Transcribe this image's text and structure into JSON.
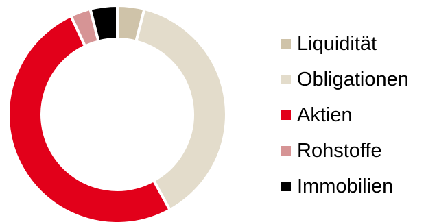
{
  "chart_data": {
    "type": "pie",
    "donut": true,
    "title": "",
    "categories": [
      "Liquidität",
      "Obligationen",
      "Aktien",
      "Rohstoffe",
      "Immobilien"
    ],
    "values": [
      4,
      38,
      51,
      3,
      4
    ],
    "unit": "%",
    "colors": [
      "#cfc3a9",
      "#e3dccb",
      "#e2001a",
      "#d69495",
      "#000000"
    ],
    "legend_position": "right"
  }
}
